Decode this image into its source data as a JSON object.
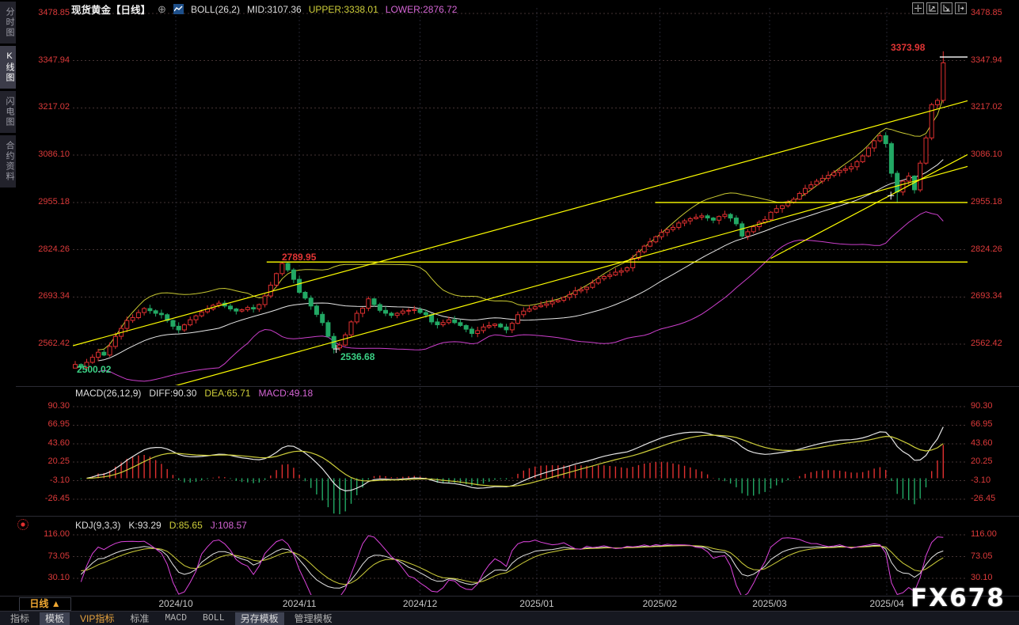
{
  "header": {
    "symbol": "现货黄金",
    "period_tag": "【日线】",
    "link_glyph": "⊕",
    "boll_label": "BOLL(26,2)",
    "mid_label": "MID:3107.36",
    "upper_label": "UPPER:3338.01",
    "lower_label": "LOWER:2876.72"
  },
  "top_icons": [
    {
      "name": "crosshair"
    },
    {
      "name": "scale-up"
    },
    {
      "name": "scale-down"
    },
    {
      "name": "pan-right"
    }
  ],
  "sidebar": {
    "items": [
      {
        "label": "分时图",
        "name": "timeshare-chart",
        "selected": false
      },
      {
        "label": "K线图",
        "name": "kline-chart",
        "selected": true
      },
      {
        "label": "闪电图",
        "name": "lightning-chart",
        "selected": false
      },
      {
        "label": "合约资料",
        "name": "contract-info",
        "selected": false
      }
    ]
  },
  "price_axis": {
    "labels": [
      "3478.85",
      "3347.94",
      "3217.02",
      "3086.10",
      "2955.18",
      "2824.26",
      "2693.34",
      "2562.42"
    ],
    "color": "#dd3a3a"
  },
  "annotations": {
    "high": "3373.98",
    "oct_high": "2789.95",
    "nov_low": "2536.68",
    "sep_low": "2500.02"
  },
  "macd": {
    "title": "MACD(26,12,9)",
    "diff": "DIFF:90.30",
    "dea": "DEA:65.71",
    "macd": "MACD:49.18",
    "axis": [
      "90.30",
      "66.95",
      "43.60",
      "20.25",
      "-3.10",
      "-26.45"
    ]
  },
  "kdj": {
    "title": "KDJ(9,3,3)",
    "k": "K:93.29",
    "d": "D:85.65",
    "j": "J:108.57",
    "axis": [
      "116.00",
      "73.05",
      "30.10"
    ]
  },
  "xaxis": {
    "period_label": "日线",
    "arrow": "▲",
    "months": [
      {
        "label": "2024/10",
        "i": 17.5
      },
      {
        "label": "2024/11",
        "i": 39.0
      },
      {
        "label": "2024/12",
        "i": 60.0
      },
      {
        "label": "2025/01",
        "i": 80.3
      },
      {
        "label": "2025/02",
        "i": 101.7
      },
      {
        "label": "2025/03",
        "i": 120.8
      },
      {
        "label": "2025/04",
        "i": 141.2
      }
    ]
  },
  "toolbar": {
    "tabs": [
      {
        "label": "指标",
        "name": "indicators",
        "selected": false,
        "vip": false,
        "mono": false
      },
      {
        "label": "模板",
        "name": "templates",
        "selected": true,
        "vip": false,
        "mono": false
      },
      {
        "label": "VIP指标",
        "name": "vip-indicators",
        "selected": false,
        "vip": true,
        "mono": false
      },
      {
        "label": "标准",
        "name": "standard",
        "selected": false,
        "vip": false,
        "mono": false
      },
      {
        "label": "MACD",
        "name": "macd",
        "selected": false,
        "vip": false,
        "mono": true
      },
      {
        "label": "BOLL",
        "name": "boll",
        "selected": false,
        "vip": false,
        "mono": true
      },
      {
        "label": "另存模板",
        "name": "save-template",
        "selected": true,
        "vip": false,
        "mono": false
      },
      {
        "label": "管理模板",
        "name": "manage-templates",
        "selected": false,
        "vip": false,
        "mono": false
      }
    ]
  },
  "watermark": "FX678",
  "colors": {
    "axis_red": "#dd3a3a",
    "candle_up": "#e03030",
    "candle_down": "#22a864",
    "boll_mid": "#e6e6e6",
    "boll_upper": "#c8c832",
    "boll_lower": "#cc3fcc",
    "trendline": "#ffff00",
    "kdj_j": "#dd44dd",
    "kdj_d": "#cfcf3a",
    "kdj_k": "#e6e6e6",
    "grid": "#443434",
    "month_grid": "#252531"
  },
  "chart_data": {
    "type": "candlestick",
    "title": "现货黄金 日线 (spot gold daily)",
    "price_range": [
      2562.42,
      3478.85
    ],
    "macd_range": [
      -26.45,
      90.3
    ],
    "kdj_range": [
      30.1,
      116.0
    ],
    "first_open": 2496,
    "closes": [
      2506,
      2498,
      2512,
      2526,
      2540,
      2532,
      2556,
      2584,
      2606,
      2628,
      2636,
      2650,
      2661,
      2655,
      2648,
      2644,
      2628,
      2612,
      2602,
      2616,
      2630,
      2641,
      2652,
      2660,
      2670,
      2676,
      2668,
      2660,
      2654,
      2658,
      2664,
      2660,
      2672,
      2696,
      2726,
      2758,
      2786,
      2768,
      2742,
      2706,
      2690,
      2668,
      2645,
      2622,
      2584,
      2552,
      2560,
      2588,
      2624,
      2648,
      2662,
      2688,
      2672,
      2656,
      2648,
      2642,
      2648,
      2654,
      2656,
      2658,
      2650,
      2644,
      2624,
      2616,
      2622,
      2630,
      2622,
      2614,
      2604,
      2592,
      2600,
      2610,
      2614,
      2618,
      2610,
      2602,
      2620,
      2644,
      2654,
      2660,
      2666,
      2670,
      2674,
      2680,
      2684,
      2692,
      2700,
      2710,
      2714,
      2720,
      2732,
      2744,
      2750,
      2754,
      2762,
      2766,
      2774,
      2800,
      2818,
      2834,
      2846,
      2860,
      2872,
      2880,
      2886,
      2898,
      2904,
      2910,
      2914,
      2918,
      2912,
      2906,
      2916,
      2922,
      2912,
      2896,
      2862,
      2874,
      2888,
      2900,
      2908,
      2928,
      2938,
      2946,
      2956,
      2964,
      2980,
      2994,
      3004,
      3014,
      3022,
      3030,
      3038,
      3044,
      3048,
      3054,
      3068,
      3084,
      3106,
      3126,
      3140,
      3118,
      3036,
      2984,
      3014,
      3028,
      2990,
      3064,
      3134,
      3226,
      3238,
      3342
    ],
    "specials": {
      "0": {
        "low": 2500.02
      },
      "36": {
        "high": 2789.95
      },
      "45": {
        "low": 2536.68
      },
      "143": {
        "low": 2956.0
      },
      "151": {
        "high": 3373.98
      }
    },
    "boll_params": {
      "period": 26,
      "width": 2
    },
    "macd_params": [
      26,
      12,
      9
    ],
    "kdj_params": [
      9,
      3,
      3
    ],
    "trendlines": [
      {
        "i1": -0.4,
        "p1": 2558,
        "i2": 155.5,
        "p2": 3238
      },
      {
        "i1": 15.8,
        "p1": 2440,
        "i2": 155.5,
        "p2": 3056
      },
      {
        "i1": 121.0,
        "p1": 2800,
        "i2": 155.5,
        "p2": 3090
      }
    ],
    "hlines": [
      {
        "p": 2789.95,
        "i1": 33.3,
        "i2": 156
      },
      {
        "p": 2955.18,
        "i1": 100.9,
        "i2": 156
      }
    ],
    "markers": {
      "high_line": {
        "i1": 150.4,
        "i2": 156,
        "p": 3358
      },
      "crosses": [
        {
          "i": 45.4,
          "p": 2549
        },
        {
          "i": 141.9,
          "p": 2974
        }
      ]
    }
  }
}
